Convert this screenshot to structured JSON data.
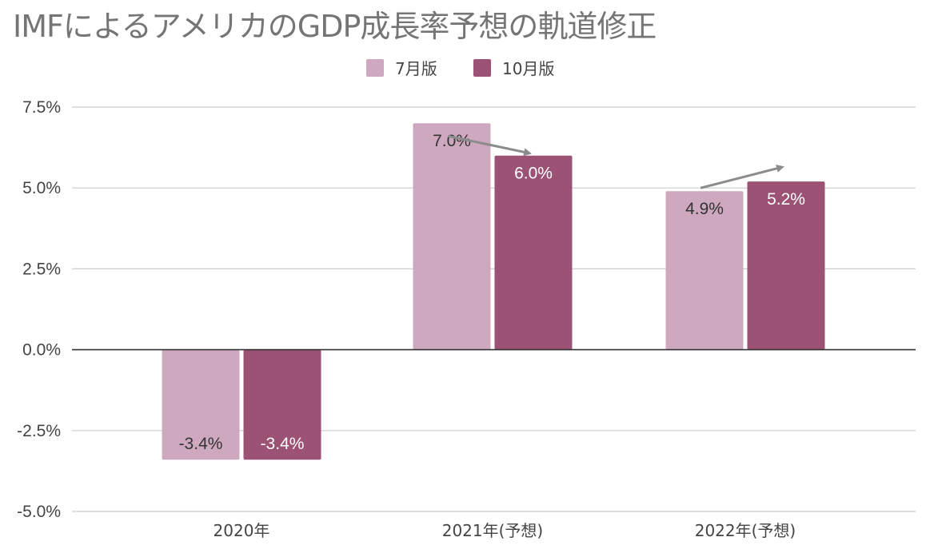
{
  "chart_data": {
    "type": "bar",
    "title": "IMFによるアメリカのGDP成長率予想の軌道修正",
    "categories": [
      "2020年",
      "2021年(予想)",
      "2022年(予想)"
    ],
    "series": [
      {
        "name": "7月版",
        "values": [
          -3.4,
          7.0,
          4.9
        ],
        "labels": [
          "-3.4%",
          "7.0%",
          "4.9%"
        ],
        "color": "#cea8bf",
        "label_color": "#333333"
      },
      {
        "name": "10月版",
        "values": [
          -3.4,
          6.0,
          5.2
        ],
        "labels": [
          "-3.4%",
          "6.0%",
          "5.2%"
        ],
        "color": "#9b5275",
        "label_color": "#ffffff"
      }
    ],
    "y_ticks": [
      "-5.0%",
      "-2.5%",
      "0.0%",
      "2.5%",
      "5.0%",
      "7.5%"
    ],
    "y_tick_values": [
      -5,
      -2.5,
      0,
      2.5,
      5,
      7.5
    ],
    "ylim": [
      -5,
      7.5
    ],
    "grid": true,
    "legend_position": "top-center",
    "annotations": [
      {
        "type": "arrow",
        "from_category": 1,
        "direction": "down",
        "color": "#8c8c8c"
      },
      {
        "type": "arrow",
        "from_category": 2,
        "direction": "up",
        "color": "#8c8c8c"
      }
    ]
  }
}
